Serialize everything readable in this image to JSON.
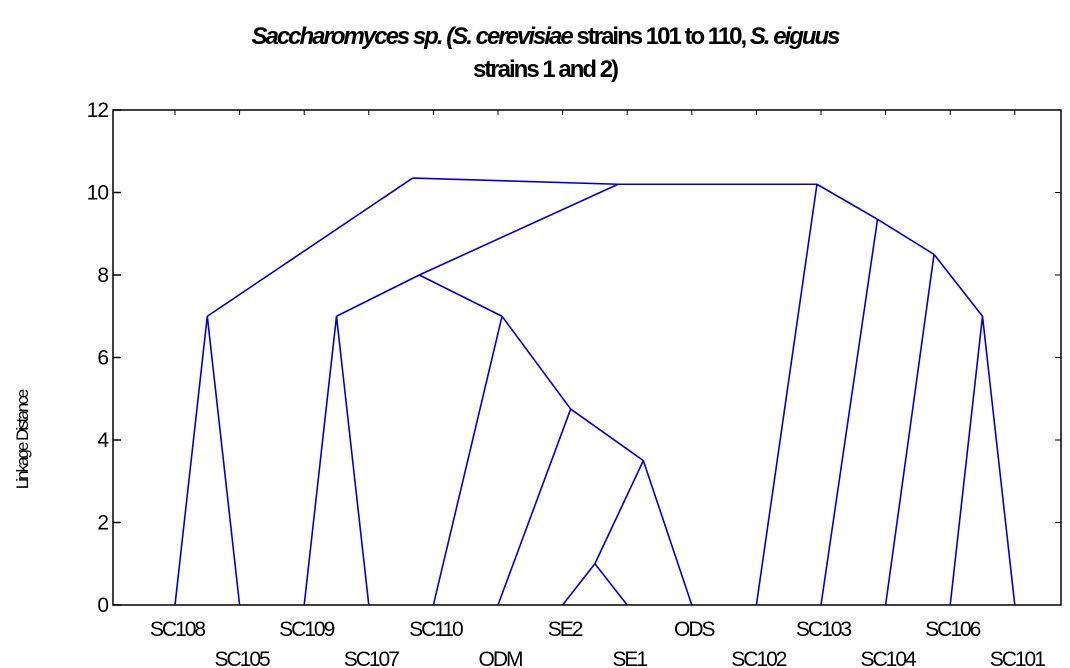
{
  "chart_data": {
    "type": "dendrogram",
    "title_line1_parts": [
      {
        "text": "Saccharomyces sp. (",
        "italic": true
      },
      {
        "text": "S. cerevisiae",
        "italic": true
      },
      {
        "text": " strains 101 to 110, ",
        "italic": false
      },
      {
        "text": "S. eiguus",
        "italic": true
      }
    ],
    "title_line2": "strains 1 and 2)",
    "ylabel": "Linkage Distance",
    "ylim": [
      0,
      12
    ],
    "yticks": [
      0,
      2,
      4,
      6,
      8,
      10,
      12
    ],
    "grid": false,
    "line_color": "#0000cc",
    "leaves": [
      "SC108",
      "SC105",
      "SC109",
      "SC107",
      "SC110",
      "ODM",
      "SE2",
      "SE1",
      "ODS",
      "SC102",
      "SC103",
      "SC104",
      "SC106",
      "SC101"
    ],
    "merges": [
      {
        "id": "n1",
        "children": [
          "SC108",
          "SC105"
        ],
        "height": 7.0
      },
      {
        "id": "n2",
        "children": [
          "SC109",
          "SC107"
        ],
        "height": 7.0
      },
      {
        "id": "n3",
        "children": [
          "SE2",
          "SE1"
        ],
        "height": 1.0
      },
      {
        "id": "n4",
        "children": [
          "n3",
          "ODS"
        ],
        "height": 3.5
      },
      {
        "id": "n5",
        "children": [
          "ODM",
          "n4"
        ],
        "height": 4.75
      },
      {
        "id": "n6",
        "children": [
          "SC110",
          "n5"
        ],
        "height": 7.0
      },
      {
        "id": "n7",
        "children": [
          "n2",
          "n6"
        ],
        "height": 8.0
      },
      {
        "id": "n8",
        "children": [
          "SC106",
          "SC101"
        ],
        "height": 7.0
      },
      {
        "id": "n9",
        "children": [
          "SC104",
          "n8"
        ],
        "height": 8.5
      },
      {
        "id": "n10",
        "children": [
          "SC103",
          "n9"
        ],
        "height": 9.35
      },
      {
        "id": "n11",
        "children": [
          "SC102",
          "n10"
        ],
        "height": 10.2
      },
      {
        "id": "n12",
        "children": [
          "n7",
          "n11"
        ],
        "height": 10.2
      },
      {
        "id": "n13",
        "children": [
          "n1",
          "n12"
        ],
        "height": 10.35
      }
    ]
  }
}
